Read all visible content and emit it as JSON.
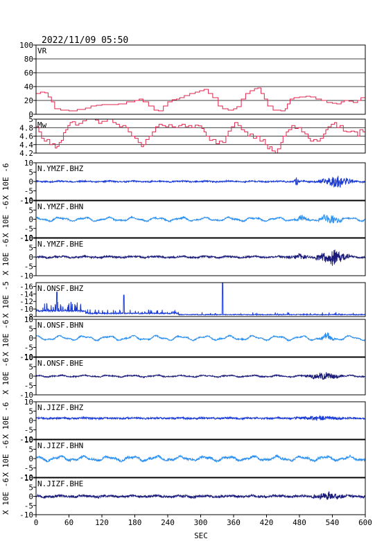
{
  "header": {
    "datetime": "2022/11/09 05:50"
  },
  "chart_data": {
    "type": "line",
    "xlabel": "SEC",
    "xlim": [
      0,
      600
    ],
    "xticks": [
      0,
      60,
      120,
      180,
      240,
      300,
      360,
      420,
      480,
      540,
      600
    ],
    "panels": [
      {
        "id": "vr",
        "label": "VR",
        "ylabel": "",
        "ylim": [
          0,
          100
        ],
        "yticks": [
          0,
          20,
          40,
          60,
          80,
          100
        ],
        "grid": true,
        "color": "#e0204a",
        "invert": false,
        "kind": "step",
        "series": [
          [
            0,
            30
          ],
          [
            8,
            32
          ],
          [
            16,
            31
          ],
          [
            22,
            25
          ],
          [
            28,
            18
          ],
          [
            34,
            8
          ],
          [
            45,
            6
          ],
          [
            60,
            5
          ],
          [
            75,
            7
          ],
          [
            90,
            9
          ],
          [
            100,
            12
          ],
          [
            110,
            13
          ],
          [
            120,
            14
          ],
          [
            135,
            14
          ],
          [
            150,
            15
          ],
          [
            165,
            18
          ],
          [
            180,
            20
          ],
          [
            188,
            22
          ],
          [
            195,
            18
          ],
          [
            205,
            12
          ],
          [
            215,
            6
          ],
          [
            223,
            5
          ],
          [
            232,
            12
          ],
          [
            240,
            18
          ],
          [
            248,
            21
          ],
          [
            256,
            22
          ],
          [
            262,
            24
          ],
          [
            270,
            27
          ],
          [
            280,
            30
          ],
          [
            290,
            32
          ],
          [
            298,
            34
          ],
          [
            306,
            36
          ],
          [
            314,
            30
          ],
          [
            322,
            24
          ],
          [
            332,
            12
          ],
          [
            340,
            8
          ],
          [
            350,
            6
          ],
          [
            360,
            8
          ],
          [
            366,
            11
          ],
          [
            374,
            22
          ],
          [
            382,
            30
          ],
          [
            390,
            34
          ],
          [
            398,
            37
          ],
          [
            404,
            38
          ],
          [
            410,
            30
          ],
          [
            416,
            22
          ],
          [
            422,
            12
          ],
          [
            432,
            6
          ],
          [
            446,
            5
          ],
          [
            454,
            8
          ],
          [
            458,
            15
          ],
          [
            463,
            22
          ],
          [
            470,
            24
          ],
          [
            480,
            25
          ],
          [
            492,
            26
          ],
          [
            500,
            25
          ],
          [
            510,
            22
          ],
          [
            520,
            20
          ],
          [
            530,
            17
          ],
          [
            540,
            16
          ],
          [
            548,
            15
          ],
          [
            556,
            18
          ],
          [
            562,
            20
          ],
          [
            570,
            19
          ],
          [
            578,
            17
          ],
          [
            586,
            20
          ],
          [
            592,
            24
          ],
          [
            600,
            26
          ]
        ]
      },
      {
        "id": "mw",
        "label": "Mw",
        "ylabel": "",
        "ylim": [
          4.2,
          5.0
        ],
        "yticks": [
          4.2,
          4.4,
          4.6,
          4.8,
          5.0
        ],
        "grid": true,
        "color": "#e0204a",
        "invert": false,
        "kind": "step",
        "series": [
          [
            0,
            4.82
          ],
          [
            5,
            4.7
          ],
          [
            10,
            4.55
          ],
          [
            15,
            4.48
          ],
          [
            20,
            4.52
          ],
          [
            25,
            4.4
          ],
          [
            30,
            4.42
          ],
          [
            35,
            4.32
          ],
          [
            38,
            4.36
          ],
          [
            42,
            4.45
          ],
          [
            46,
            4.5
          ],
          [
            50,
            4.68
          ],
          [
            54,
            4.75
          ],
          [
            58,
            4.85
          ],
          [
            62,
            4.92
          ],
          [
            66,
            4.94
          ],
          [
            72,
            4.86
          ],
          [
            78,
            4.9
          ],
          [
            85,
            4.96
          ],
          [
            92,
            5.0
          ],
          [
            100,
            5.0
          ],
          [
            108,
            4.98
          ],
          [
            114,
            4.9
          ],
          [
            120,
            4.95
          ],
          [
            130,
            5.0
          ],
          [
            140,
            4.92
          ],
          [
            146,
            4.88
          ],
          [
            152,
            4.82
          ],
          [
            158,
            4.85
          ],
          [
            164,
            4.8
          ],
          [
            168,
            4.7
          ],
          [
            174,
            4.6
          ],
          [
            180,
            4.55
          ],
          [
            186,
            4.45
          ],
          [
            192,
            4.35
          ],
          [
            196,
            4.4
          ],
          [
            200,
            4.52
          ],
          [
            206,
            4.6
          ],
          [
            212,
            4.7
          ],
          [
            218,
            4.82
          ],
          [
            224,
            4.88
          ],
          [
            230,
            4.85
          ],
          [
            236,
            4.82
          ],
          [
            242,
            4.87
          ],
          [
            248,
            4.82
          ],
          [
            254,
            4.8
          ],
          [
            260,
            4.85
          ],
          [
            266,
            4.88
          ],
          [
            272,
            4.82
          ],
          [
            278,
            4.85
          ],
          [
            284,
            4.8
          ],
          [
            290,
            4.86
          ],
          [
            296,
            4.84
          ],
          [
            302,
            4.78
          ],
          [
            306,
            4.7
          ],
          [
            310,
            4.6
          ],
          [
            316,
            4.5
          ],
          [
            322,
            4.52
          ],
          [
            328,
            4.42
          ],
          [
            334,
            4.48
          ],
          [
            340,
            4.45
          ],
          [
            346,
            4.6
          ],
          [
            350,
            4.72
          ],
          [
            356,
            4.82
          ],
          [
            362,
            4.92
          ],
          [
            368,
            4.85
          ],
          [
            374,
            4.75
          ],
          [
            380,
            4.7
          ],
          [
            386,
            4.6
          ],
          [
            390,
            4.65
          ],
          [
            396,
            4.55
          ],
          [
            402,
            4.6
          ],
          [
            408,
            4.48
          ],
          [
            414,
            4.52
          ],
          [
            418,
            4.4
          ],
          [
            422,
            4.3
          ],
          [
            426,
            4.35
          ],
          [
            430,
            4.25
          ],
          [
            436,
            4.2
          ],
          [
            440,
            4.3
          ],
          [
            446,
            4.45
          ],
          [
            450,
            4.6
          ],
          [
            456,
            4.7
          ],
          [
            460,
            4.75
          ],
          [
            466,
            4.85
          ],
          [
            472,
            4.78
          ],
          [
            478,
            4.8
          ],
          [
            484,
            4.7
          ],
          [
            490,
            4.65
          ],
          [
            496,
            4.55
          ],
          [
            500,
            4.48
          ],
          [
            506,
            4.52
          ],
          [
            512,
            4.48
          ],
          [
            518,
            4.55
          ],
          [
            524,
            4.65
          ],
          [
            528,
            4.75
          ],
          [
            532,
            4.82
          ],
          [
            538,
            4.88
          ],
          [
            544,
            4.92
          ],
          [
            548,
            4.8
          ],
          [
            554,
            4.85
          ],
          [
            560,
            4.72
          ],
          [
            566,
            4.7
          ],
          [
            574,
            4.72
          ],
          [
            580,
            4.7
          ],
          [
            586,
            4.6
          ],
          [
            590,
            4.75
          ],
          [
            596,
            4.7
          ],
          [
            600,
            4.72
          ]
        ]
      },
      {
        "id": "ymz-bhz",
        "label": "N.YMZF.BHZ",
        "ylabel": "X 10E -6",
        "ylim": [
          -10,
          10
        ],
        "yticks": [
          -10,
          -5,
          0,
          5,
          10
        ],
        "grid": false,
        "color": "#1a3ad6",
        "invert": false,
        "kind": "wave",
        "seed": 11,
        "base": 0.35,
        "slow": 0.25,
        "bursts": [
          [
            470,
            480,
            2.4
          ],
          [
            515,
            580,
            3.2
          ]
        ]
      },
      {
        "id": "ymz-bhn",
        "label": "N.YMZF.BHN",
        "ylabel": "X 10E -6",
        "ylim": [
          -10,
          10
        ],
        "yticks": [
          -10,
          -5,
          0,
          5,
          10
        ],
        "grid": false,
        "color": "#2b8ff0",
        "invert": false,
        "kind": "wave",
        "seed": 23,
        "base": 0.35,
        "slow": 1.1,
        "bursts": [
          [
            470,
            500,
            1.2
          ],
          [
            515,
            560,
            2.6
          ]
        ]
      },
      {
        "id": "ymz-bhe",
        "label": "N.YMZF.BHE",
        "ylabel": "X 10E -6",
        "ylim": [
          -10,
          10
        ],
        "yticks": [
          -10,
          -5,
          0,
          5,
          10
        ],
        "grid": false,
        "color": "#1a1a7a",
        "invert": false,
        "kind": "wave",
        "seed": 37,
        "base": 0.45,
        "slow": 0.4,
        "bursts": [
          [
            460,
            500,
            1.2
          ],
          [
            510,
            570,
            4.5
          ]
        ]
      },
      {
        "id": "ons-bhz",
        "label": "N.ONSF.BHZ",
        "ylabel": "X 10E -5",
        "ylim": [
          -17,
          -8
        ],
        "yticks": [
          -16,
          -14,
          -12,
          -10,
          -8
        ],
        "grid": false,
        "color": "#1a3ad6",
        "invert": true,
        "kind": "drift",
        "seed": 41,
        "spikes": [
          [
            38,
            -14.5
          ],
          [
            160,
            -13.7
          ],
          [
            340,
            -16.9
          ]
        ]
      },
      {
        "id": "ons-bhn",
        "label": "N.ONSF.BHN",
        "ylabel": "X 10E -6",
        "ylim": [
          -10,
          10
        ],
        "yticks": [
          -10,
          -5,
          0,
          5,
          10
        ],
        "grid": false,
        "color": "#2b8ff0",
        "invert": false,
        "kind": "wave",
        "seed": 53,
        "base": 0.3,
        "slow": 1.3,
        "bursts": [
          [
            515,
            545,
            2.0
          ]
        ]
      },
      {
        "id": "ons-bhe",
        "label": "N.ONSF.BHE",
        "ylabel": "X 10E -6",
        "ylim": [
          -10,
          10
        ],
        "yticks": [
          -10,
          -5,
          0,
          5,
          10
        ],
        "grid": false,
        "color": "#1a1a7a",
        "invert": false,
        "kind": "wave",
        "seed": 61,
        "base": 0.3,
        "slow": 0.5,
        "bursts": [
          [
            490,
            560,
            1.8
          ]
        ]
      },
      {
        "id": "jiz-bhz",
        "label": "N.JIZF.BHZ",
        "ylabel": "X 10E -6",
        "ylim": [
          -10,
          10
        ],
        "yticks": [
          -10,
          -5,
          0,
          5,
          10
        ],
        "grid": false,
        "color": "#1a3ad6",
        "invert": false,
        "kind": "wave",
        "seed": 71,
        "base": 0.45,
        "slow": 0.2,
        "offset": 1.2,
        "bursts": [
          [
            470,
            560,
            0.9
          ]
        ]
      },
      {
        "id": "jiz-bhn",
        "label": "N.JIZF.BHN",
        "ylabel": "X 10E -6",
        "ylim": [
          -10,
          10
        ],
        "yticks": [
          -10,
          -5,
          0,
          5,
          10
        ],
        "grid": false,
        "color": "#2b8ff0",
        "invert": false,
        "kind": "wave",
        "seed": 83,
        "base": 0.6,
        "slow": 1.3,
        "bursts": []
      },
      {
        "id": "jiz-bhe",
        "label": "N.JIZF.BHE",
        "ylabel": "X 10E -6",
        "ylim": [
          -10,
          10
        ],
        "yticks": [
          -10,
          -5,
          0,
          5,
          10
        ],
        "grid": false,
        "color": "#1a1a7a",
        "invert": false,
        "kind": "wave",
        "seed": 97,
        "base": 0.6,
        "slow": 0.4,
        "bursts": [
          [
            505,
            560,
            1.8
          ]
        ]
      }
    ]
  }
}
